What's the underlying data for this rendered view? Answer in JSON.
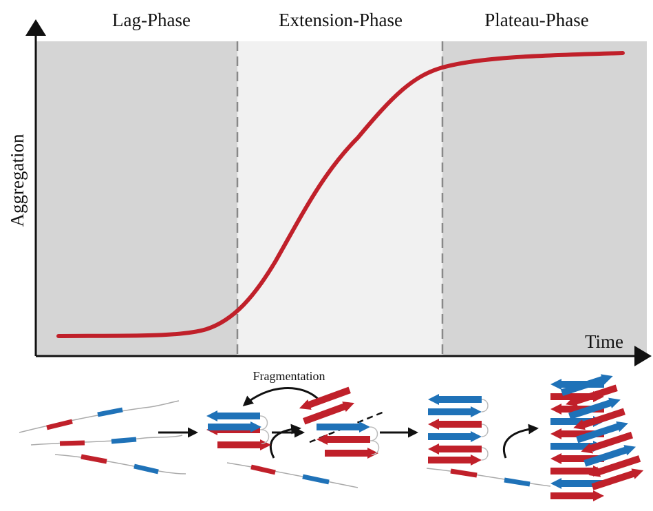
{
  "phases": [
    "Lag-Phase",
    "Extension-Phase",
    "Plateau-Phase"
  ],
  "axes": {
    "y_label": "Aggregation",
    "x_label": "Time"
  },
  "process": {
    "label": "Fragmentation"
  }
}
